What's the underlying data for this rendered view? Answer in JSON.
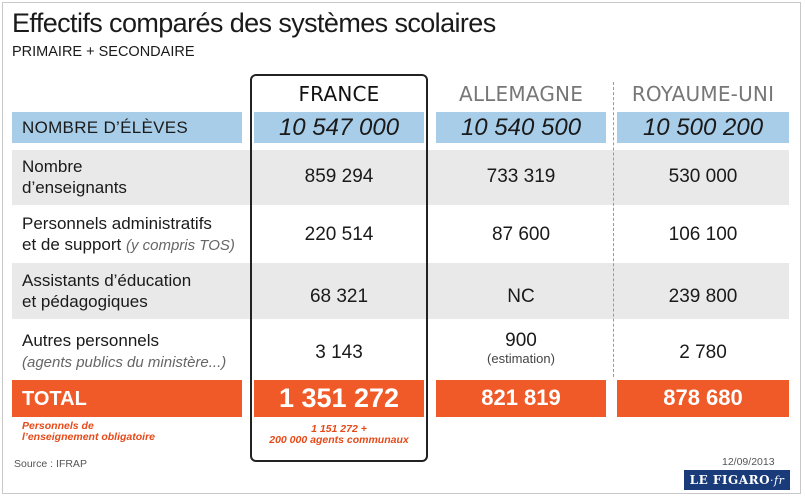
{
  "header": {
    "title": "Effectifs comparés des systèmes scolaires",
    "subtitle": "PRIMAIRE + SECONDAIRE"
  },
  "columns": [
    "FRANCE",
    "ALLEMAGNE",
    "ROYAUME-UNI"
  ],
  "students": {
    "label": "NOMBRE D’ÉLÈVES",
    "values": [
      "10 547 000",
      "10 540 500",
      "10 500 200"
    ]
  },
  "rows": [
    {
      "label_line1": "Nombre",
      "label_line2": "d’enseignants",
      "label_note": "",
      "values": [
        "859 294",
        "733 319",
        "530 000"
      ]
    },
    {
      "label_line1": "Personnels administratifs",
      "label_line2": "et de support ",
      "label_note": "(y compris TOS)",
      "values": [
        "220 514",
        "87 600",
        "106 100"
      ]
    },
    {
      "label_line1": "Assistants d’éducation",
      "label_line2": "et pédagogiques",
      "label_note": "",
      "values": [
        "68 321",
        "NC",
        "239 800"
      ]
    },
    {
      "label_line1": "Autres personnels",
      "label_line2": "",
      "label_note": "(agents publics du ministère...)",
      "values": [
        "3 143",
        "900",
        "2 780"
      ],
      "value_note_de": "(estimation)"
    }
  ],
  "total": {
    "label": "TOTAL",
    "values": [
      "1 351 272",
      "821 819",
      "878 680"
    ]
  },
  "notes": {
    "left_line1": "Personnels de",
    "left_line2": "l’enseignement obligatoire",
    "fr_line1": "1 151 272 +",
    "fr_line2": "200 000 agents communaux"
  },
  "footer": {
    "source": "Source : IFRAP",
    "date": "12/09/2013",
    "logo_main": "LE FIGARO",
    "logo_suffix": "·fr"
  },
  "colors": {
    "blue_row": "#a8cde8",
    "total_row": "#f05a28",
    "grey_row": "#e9e9e9",
    "note_text": "#e64a19",
    "logo_bg": "#1a3b7a"
  }
}
